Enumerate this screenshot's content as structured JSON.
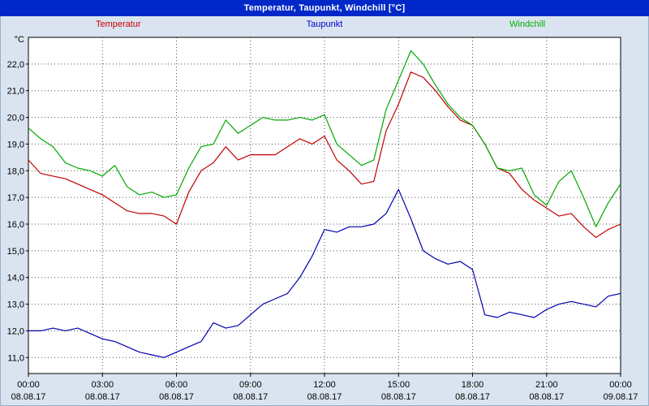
{
  "window": {
    "title": "Temperatur, Taupunkt, Windchill [°C]"
  },
  "colors": {
    "titlebar_bg": "#0028c8",
    "titlebar_text": "#ffffff",
    "page_bg": "#d9e4f0",
    "plot_bg": "#ffffff",
    "plot_border": "#000000",
    "grid": "#505050"
  },
  "legend": [
    {
      "label": "Temperatur",
      "color": "#cc0000"
    },
    {
      "label": "Taupunkt",
      "color": "#0000cc"
    },
    {
      "label": "Windchill",
      "color": "#00b000"
    }
  ],
  "chart_data": {
    "type": "line",
    "title": "Temperatur, Taupunkt, Windchill [°C]",
    "ylabel": "°C",
    "xlabel": "",
    "grid": "dotted",
    "legend_position": "top",
    "ylim": [
      10.4,
      23.0
    ],
    "y_ticks": [
      11,
      12,
      13,
      14,
      15,
      16,
      17,
      18,
      19,
      20,
      21,
      22
    ],
    "y_tick_labels": [
      "11,0",
      "12,0",
      "13,0",
      "14,0",
      "15,0",
      "16,0",
      "17,0",
      "18,0",
      "19,0",
      "20,0",
      "21,0",
      "22,0"
    ],
    "x_ticks": [
      0,
      3,
      6,
      9,
      12,
      15,
      18,
      21,
      24
    ],
    "x_tick_labels": [
      "00:00",
      "03:00",
      "06:00",
      "09:00",
      "12:00",
      "15:00",
      "18:00",
      "21:00",
      "00:00"
    ],
    "x_date_labels": [
      "08.08.17",
      "08.08.17",
      "08.08.17",
      "08.08.17",
      "08.08.17",
      "08.08.17",
      "08.08.17",
      "08.08.17",
      "09.08.17"
    ],
    "x_unit": "hours",
    "x": [
      0,
      0.5,
      1,
      1.5,
      2,
      2.5,
      3,
      3.5,
      4,
      4.5,
      5,
      5.5,
      6,
      6.5,
      7,
      7.5,
      8,
      8.5,
      9,
      9.5,
      10,
      10.5,
      11,
      11.5,
      12,
      12.5,
      13,
      13.5,
      14,
      14.5,
      15,
      15.5,
      16,
      16.5,
      17,
      17.5,
      18,
      18.5,
      19,
      19.5,
      20,
      20.5,
      21,
      21.5,
      22,
      22.5,
      23,
      23.5,
      24
    ],
    "series": [
      {
        "name": "Temperatur",
        "color": "#c00000",
        "values": [
          18.4,
          17.9,
          17.8,
          17.7,
          17.5,
          17.3,
          17.1,
          16.8,
          16.5,
          16.4,
          16.4,
          16.3,
          16.0,
          17.2,
          18.0,
          18.3,
          18.9,
          18.4,
          18.6,
          18.6,
          18.6,
          18.9,
          19.2,
          19.0,
          19.3,
          18.4,
          18.0,
          17.5,
          17.6,
          19.5,
          20.5,
          21.7,
          21.5,
          21.0,
          20.4,
          19.9,
          19.7,
          19.0,
          18.1,
          17.9,
          17.3,
          16.9,
          16.6,
          16.3,
          16.4,
          15.9,
          15.5,
          15.8,
          16.0
        ]
      },
      {
        "name": "Taupunkt",
        "color": "#0000b0",
        "values": [
          12.0,
          12.0,
          12.1,
          12.0,
          12.1,
          11.9,
          11.7,
          11.6,
          11.4,
          11.2,
          11.1,
          11.0,
          11.2,
          11.4,
          11.6,
          12.3,
          12.1,
          12.2,
          12.6,
          13.0,
          13.2,
          13.4,
          14.0,
          14.8,
          15.8,
          15.7,
          15.9,
          15.9,
          16.0,
          16.4,
          17.3,
          16.2,
          15.0,
          14.7,
          14.5,
          14.6,
          14.3,
          12.6,
          12.5,
          12.7,
          12.6,
          12.5,
          12.8,
          13.0,
          13.1,
          13.0,
          12.9,
          13.3,
          13.4
        ]
      },
      {
        "name": "Windchill",
        "color": "#00a800",
        "values": [
          19.6,
          19.2,
          18.9,
          18.3,
          18.1,
          18.0,
          17.8,
          18.2,
          17.4,
          17.1,
          17.2,
          17.0,
          17.1,
          18.1,
          18.9,
          19.0,
          19.9,
          19.4,
          19.7,
          20.0,
          19.9,
          19.9,
          20.0,
          19.9,
          20.1,
          19.0,
          18.6,
          18.2,
          18.4,
          20.3,
          21.4,
          22.5,
          22.0,
          21.2,
          20.5,
          20.0,
          19.7,
          19.0,
          18.1,
          18.0,
          18.1,
          17.1,
          16.7,
          17.6,
          18.0,
          17.0,
          15.9,
          16.8,
          17.5
        ]
      }
    ]
  }
}
